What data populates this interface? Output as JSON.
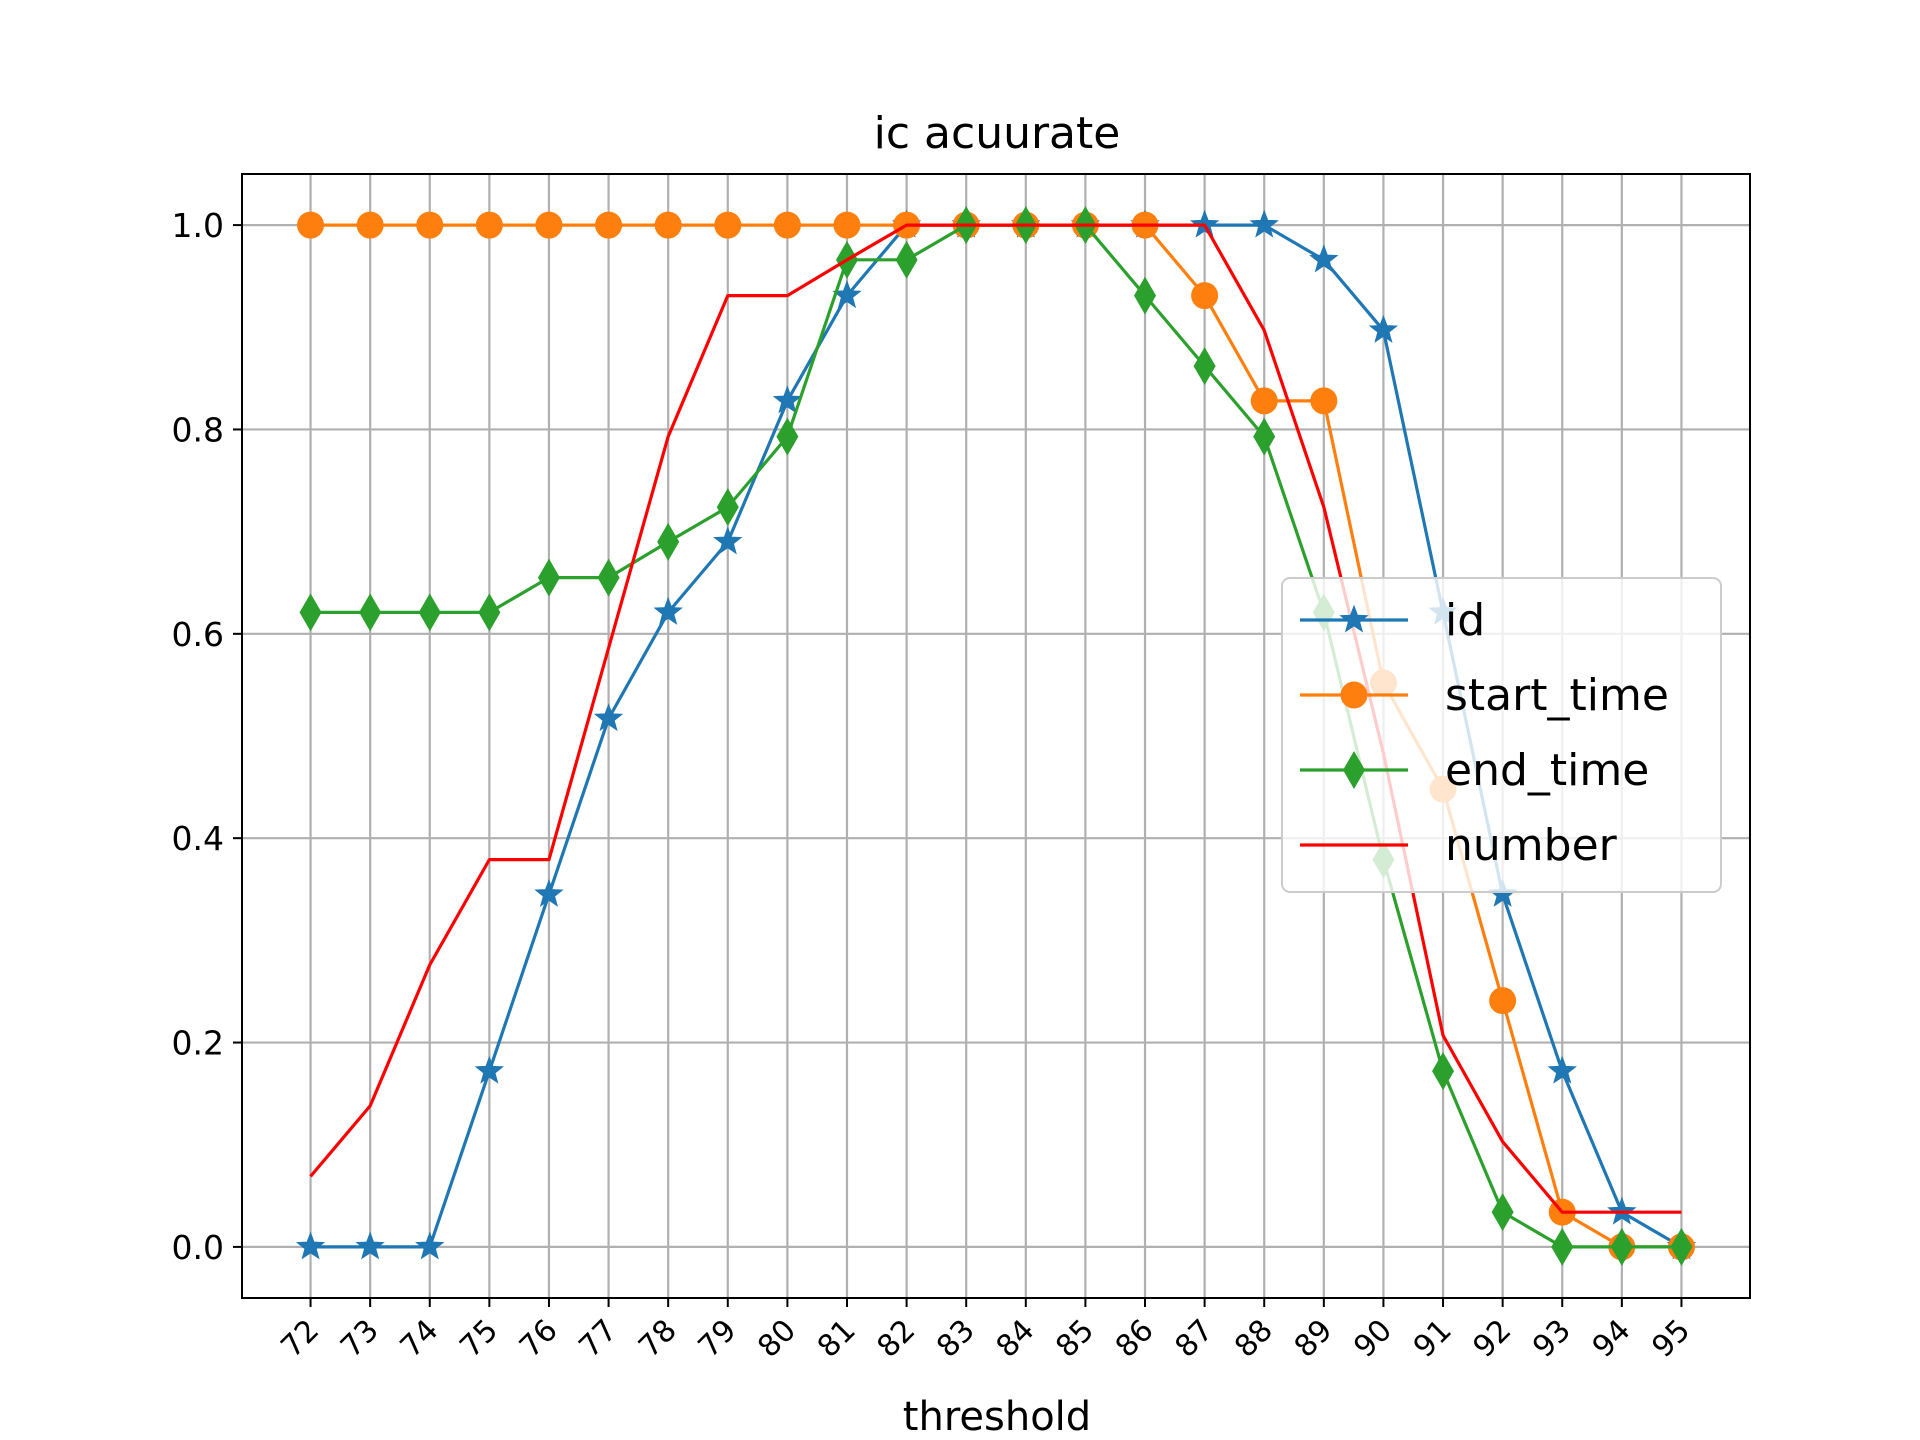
{
  "chart_data": {
    "type": "line",
    "title": "ic acuurate",
    "xlabel": "threshold",
    "ylabel": "",
    "ylim": [
      -0.05,
      1.05
    ],
    "yticks": [
      0.0,
      0.2,
      0.4,
      0.6,
      0.8,
      1.0
    ],
    "ytick_labels": [
      "0.0",
      "0.2",
      "0.4",
      "0.6",
      "0.8",
      "1.0"
    ],
    "x": [
      72,
      73,
      74,
      75,
      76,
      77,
      78,
      79,
      80,
      81,
      82,
      83,
      84,
      85,
      86,
      87,
      88,
      89,
      90,
      91,
      92,
      93,
      94,
      95
    ],
    "xtick_labels": [
      "72",
      "73",
      "74",
      "75",
      "76",
      "77",
      "78",
      "79",
      "80",
      "81",
      "82",
      "83",
      "84",
      "85",
      "86",
      "87",
      "88",
      "89",
      "90",
      "91",
      "92",
      "93",
      "94",
      "95"
    ],
    "grid": true,
    "legend_position": "center-right",
    "series": [
      {
        "name": "id",
        "color": "#1f77b4",
        "marker": "star",
        "values": [
          0.0,
          0.0,
          0.0,
          0.172,
          0.345,
          0.517,
          0.621,
          0.69,
          0.828,
          0.931,
          1.0,
          1.0,
          1.0,
          1.0,
          1.0,
          1.0,
          1.0,
          0.966,
          0.897,
          0.621,
          0.345,
          0.172,
          0.034,
          0.0
        ]
      },
      {
        "name": "start_time",
        "color": "#ff7f0e",
        "marker": "circle",
        "values": [
          1.0,
          1.0,
          1.0,
          1.0,
          1.0,
          1.0,
          1.0,
          1.0,
          1.0,
          1.0,
          1.0,
          1.0,
          1.0,
          1.0,
          1.0,
          0.931,
          0.828,
          0.828,
          0.552,
          0.448,
          0.241,
          0.034,
          0.0,
          0.0
        ]
      },
      {
        "name": "end_time",
        "color": "#2ca02c",
        "marker": "thin-diamond",
        "values": [
          0.621,
          0.621,
          0.621,
          0.621,
          0.655,
          0.655,
          0.69,
          0.724,
          0.793,
          0.966,
          0.966,
          1.0,
          1.0,
          1.0,
          0.931,
          0.862,
          0.793,
          0.621,
          0.379,
          0.172,
          0.034,
          0.0,
          0.0,
          0.0
        ]
      },
      {
        "name": "number",
        "color": "#ff0000",
        "marker": "none",
        "values": [
          0.069,
          0.138,
          0.276,
          0.379,
          0.379,
          0.586,
          0.793,
          0.931,
          0.931,
          0.966,
          1.0,
          1.0,
          1.0,
          1.0,
          1.0,
          1.0,
          0.897,
          0.724,
          0.483,
          0.207,
          0.103,
          0.034,
          0.034,
          0.034
        ]
      }
    ]
  }
}
